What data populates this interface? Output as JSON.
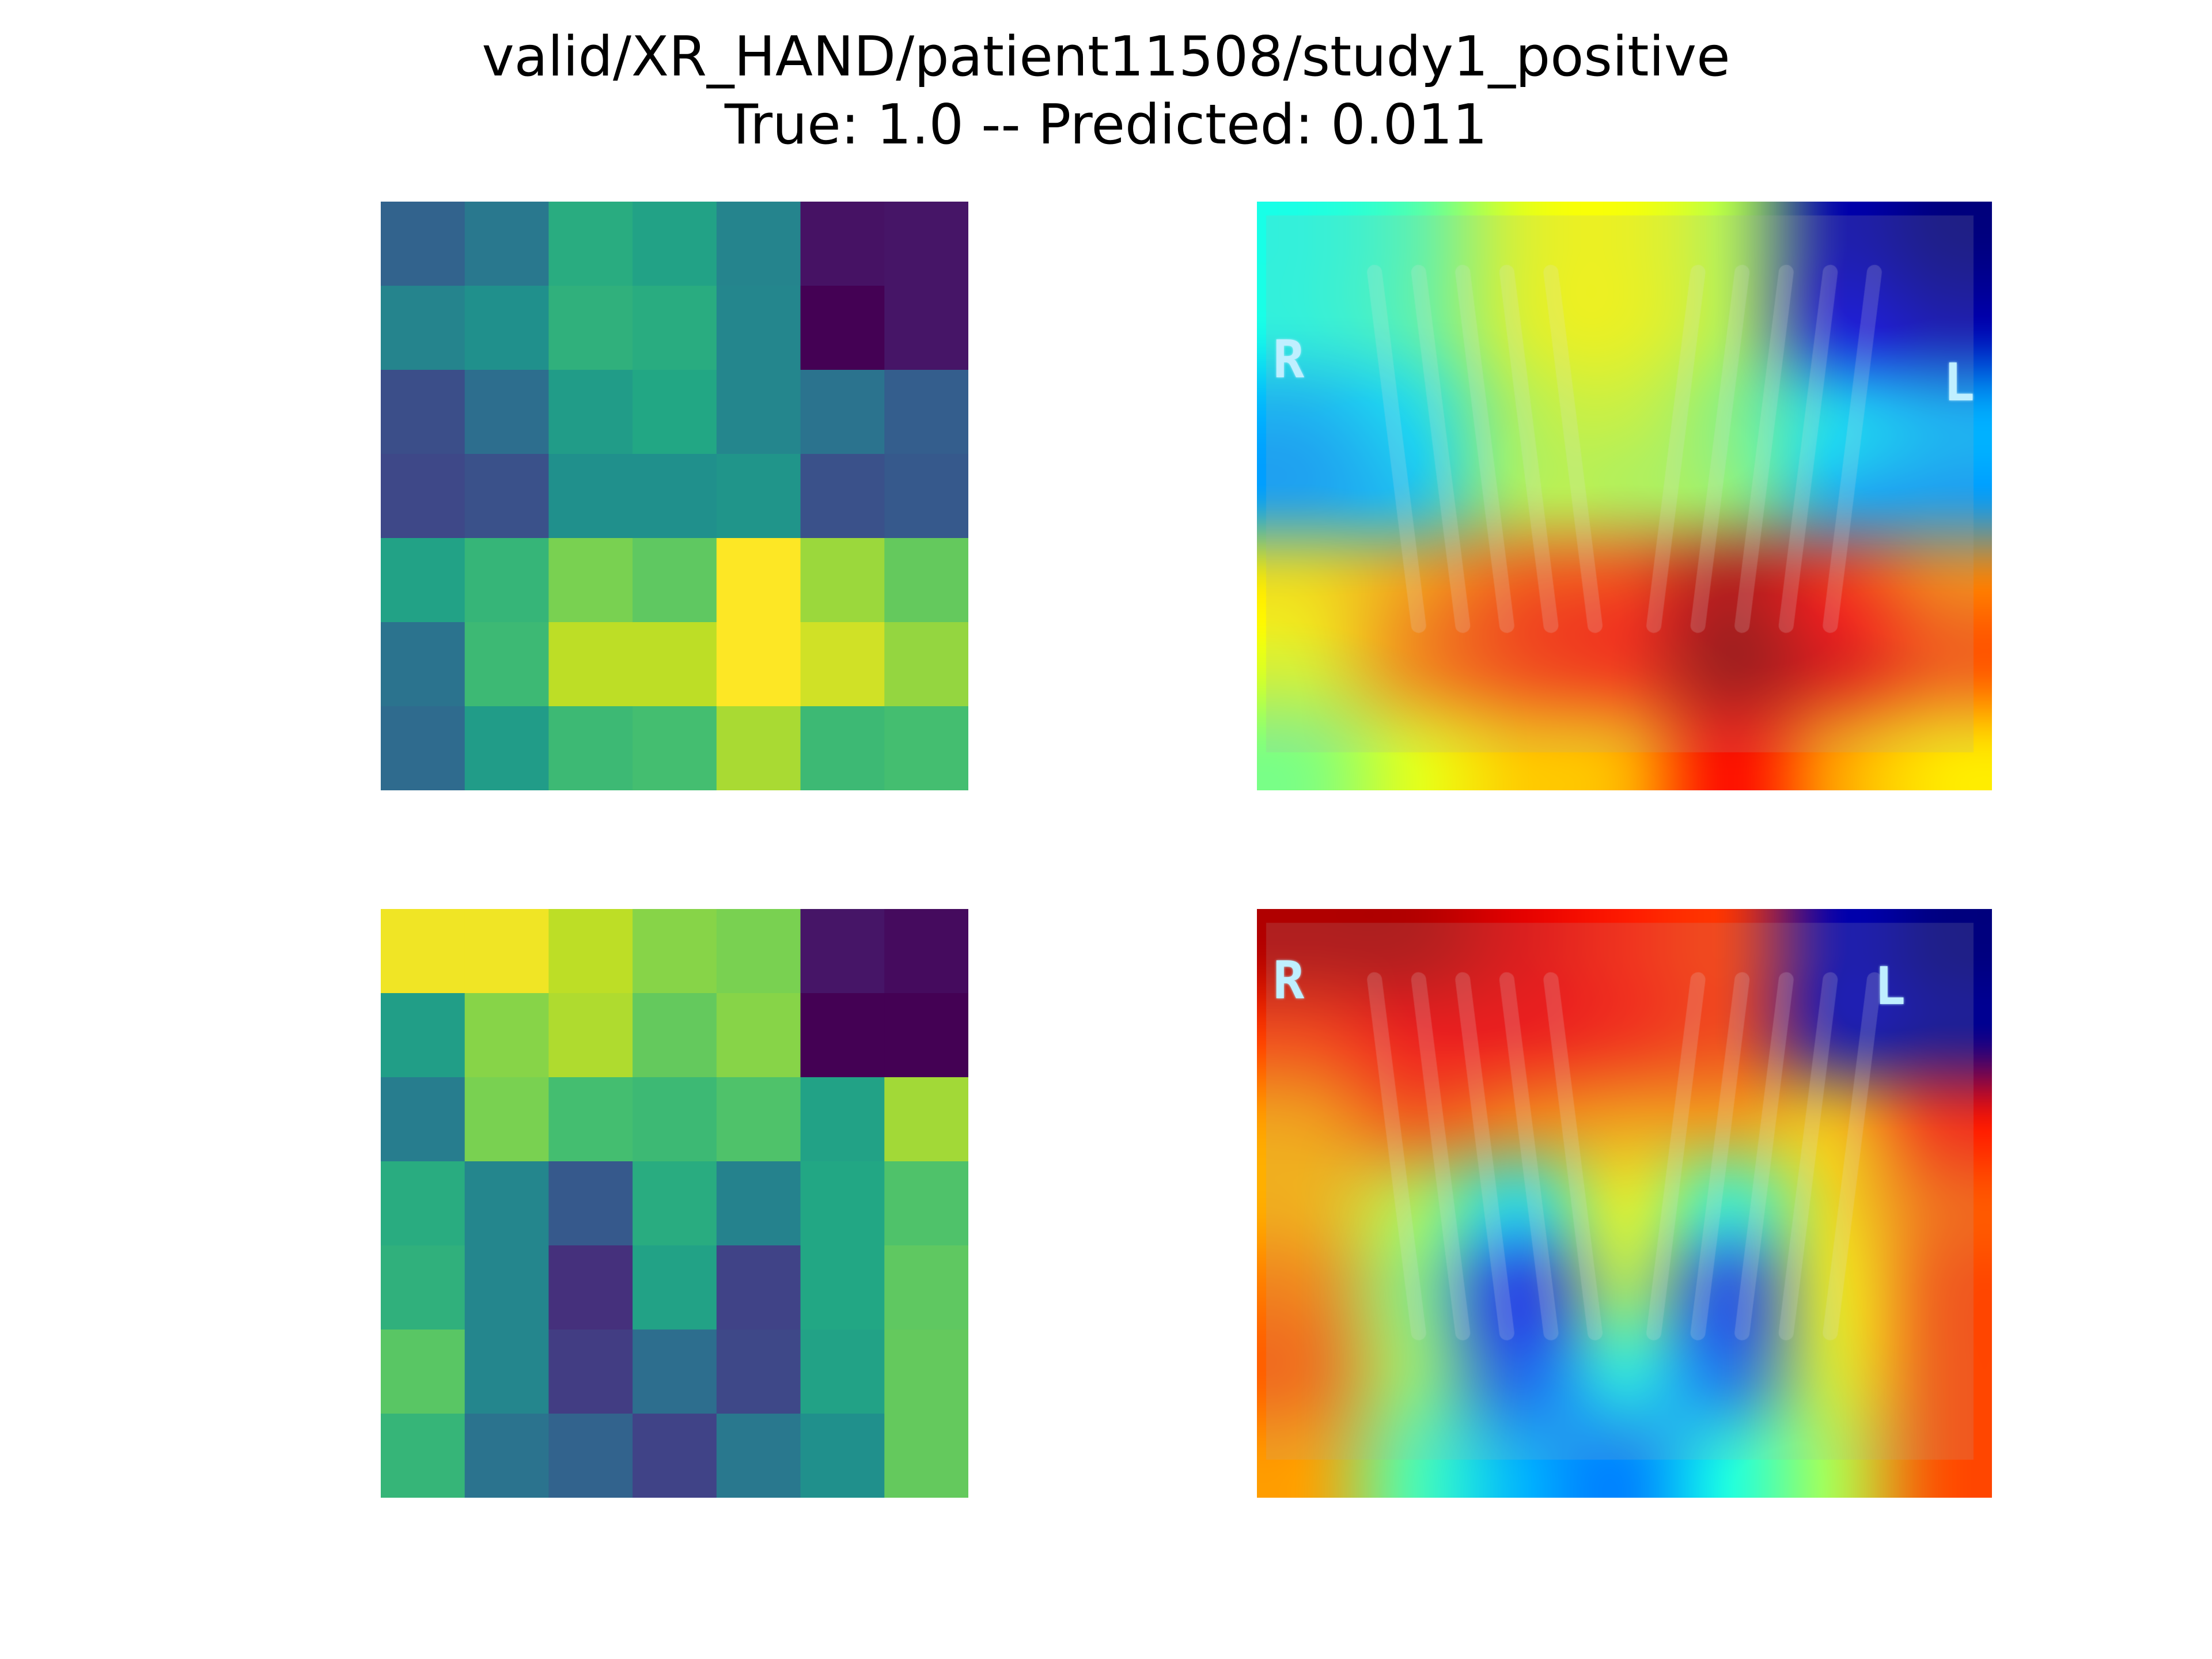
{
  "figure": {
    "title_line1": "valid/XR_HAND/patient11508/study1_positive",
    "title_line2": "True: 1.0 -- Predicted: 0.011"
  },
  "colormap": "viridis",
  "chart_data": [
    {
      "type": "heatmap",
      "panel": "top-left",
      "grid_on": false,
      "rows": 7,
      "cols": 7,
      "values": [
        [
          0.32,
          0.4,
          0.62,
          0.58,
          0.45,
          0.05,
          0.06
        ],
        [
          0.45,
          0.5,
          0.64,
          0.62,
          0.46,
          0.0,
          0.06
        ],
        [
          0.24,
          0.36,
          0.55,
          0.6,
          0.46,
          0.38,
          0.3
        ],
        [
          0.22,
          0.25,
          0.5,
          0.5,
          0.52,
          0.25,
          0.28
        ],
        [
          0.58,
          0.66,
          0.8,
          0.75,
          1.0,
          0.85,
          0.76
        ],
        [
          0.38,
          0.68,
          0.9,
          0.9,
          1.0,
          0.93,
          0.84
        ],
        [
          0.35,
          0.55,
          0.68,
          0.7,
          0.87,
          0.68,
          0.7
        ]
      ]
    },
    {
      "type": "heatmap",
      "panel": "bottom-left",
      "grid_on": false,
      "rows": 7,
      "cols": 7,
      "values": [
        [
          0.98,
          0.98,
          0.9,
          0.82,
          0.8,
          0.06,
          0.03
        ],
        [
          0.56,
          0.82,
          0.88,
          0.76,
          0.82,
          0.0,
          0.0
        ],
        [
          0.42,
          0.8,
          0.7,
          0.68,
          0.72,
          0.58,
          0.86
        ],
        [
          0.62,
          0.46,
          0.28,
          0.62,
          0.44,
          0.6,
          0.72
        ],
        [
          0.64,
          0.46,
          0.14,
          0.58,
          0.2,
          0.6,
          0.75
        ],
        [
          0.74,
          0.46,
          0.18,
          0.36,
          0.22,
          0.58,
          0.76
        ],
        [
          0.66,
          0.38,
          0.32,
          0.2,
          0.4,
          0.5,
          0.76
        ]
      ]
    }
  ],
  "overlays": [
    {
      "panel": "top-right",
      "heat": [
        [
          0.4,
          0.45,
          0.6,
          0.62,
          0.55,
          0.05,
          0.0
        ],
        [
          0.4,
          0.45,
          0.6,
          0.62,
          0.55,
          0.1,
          0.05
        ],
        [
          0.3,
          0.35,
          0.55,
          0.58,
          0.5,
          0.35,
          0.3
        ],
        [
          0.28,
          0.32,
          0.55,
          0.55,
          0.52,
          0.3,
          0.28
        ],
        [
          0.65,
          0.72,
          0.8,
          0.82,
          0.95,
          0.85,
          0.75
        ],
        [
          0.6,
          0.75,
          0.82,
          0.85,
          0.98,
          0.9,
          0.8
        ],
        [
          0.5,
          0.6,
          0.68,
          0.7,
          0.88,
          0.72,
          0.65
        ]
      ],
      "markers": [
        {
          "text": "R",
          "position": "left"
        },
        {
          "text": "L",
          "position": "right"
        }
      ]
    },
    {
      "panel": "bottom-right",
      "heat": [
        [
          0.95,
          0.95,
          0.9,
          0.85,
          0.82,
          0.05,
          0.0
        ],
        [
          0.82,
          0.88,
          0.88,
          0.85,
          0.82,
          0.05,
          0.02
        ],
        [
          0.72,
          0.8,
          0.75,
          0.72,
          0.72,
          0.68,
          0.85
        ],
        [
          0.7,
          0.55,
          0.35,
          0.62,
          0.4,
          0.65,
          0.78
        ],
        [
          0.75,
          0.5,
          0.15,
          0.55,
          0.18,
          0.62,
          0.8
        ],
        [
          0.78,
          0.52,
          0.2,
          0.4,
          0.22,
          0.6,
          0.8
        ],
        [
          0.72,
          0.45,
          0.3,
          0.25,
          0.4,
          0.55,
          0.8
        ]
      ],
      "markers": [
        {
          "text": "R",
          "position": "left"
        },
        {
          "text": "L",
          "position": "right"
        }
      ]
    }
  ]
}
